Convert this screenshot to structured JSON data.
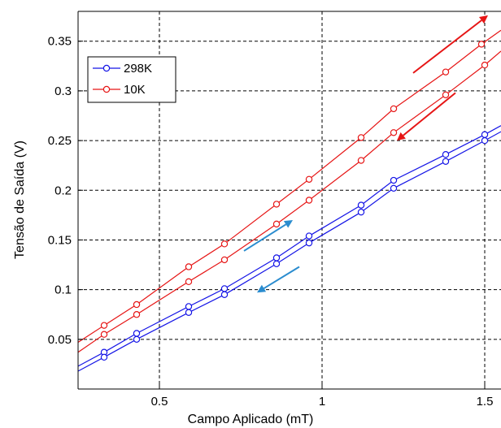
{
  "chart_data": {
    "type": "line",
    "title": "",
    "xlabel": "Campo Aplicado (mT)",
    "ylabel": "Tensão de Saída (V)",
    "xlim": [
      0.25,
      1.55
    ],
    "ylim": [
      0.0,
      0.38
    ],
    "grid": true,
    "grid_style": "dashed",
    "legend_position": "top-left",
    "x_ticks": [
      0.5,
      1,
      1.5
    ],
    "x_tick_labels": [
      "0.5",
      "1",
      "1.5"
    ],
    "y_ticks": [
      0.05,
      0.1,
      0.15,
      0.2,
      0.25,
      0.3,
      0.35
    ],
    "y_tick_labels": [
      "0.05",
      "0.1",
      "0.15",
      "0.2",
      "0.25",
      "0.3",
      "0.35"
    ],
    "series": [
      {
        "name": "298K",
        "color": "#1515e6",
        "branch": "up",
        "points": [
          [
            0.25,
            0.023
          ],
          [
            0.33,
            0.037
          ],
          [
            0.43,
            0.056
          ],
          [
            0.59,
            0.083
          ],
          [
            0.7,
            0.101
          ],
          [
            0.86,
            0.132
          ],
          [
            0.96,
            0.154
          ],
          [
            1.12,
            0.185
          ],
          [
            1.22,
            0.21
          ],
          [
            1.38,
            0.236
          ],
          [
            1.5,
            0.256
          ],
          [
            1.55,
            0.265
          ]
        ]
      },
      {
        "name": "",
        "color": "#1515e6",
        "branch": "down",
        "points": [
          [
            0.25,
            0.018
          ],
          [
            0.33,
            0.032
          ],
          [
            0.43,
            0.05
          ],
          [
            0.59,
            0.077
          ],
          [
            0.7,
            0.095
          ],
          [
            0.86,
            0.126
          ],
          [
            0.96,
            0.147
          ],
          [
            1.12,
            0.178
          ],
          [
            1.22,
            0.202
          ],
          [
            1.38,
            0.229
          ],
          [
            1.5,
            0.25
          ],
          [
            1.55,
            0.259
          ]
        ]
      },
      {
        "name": "10K",
        "color": "#e61515",
        "branch": "up",
        "points": [
          [
            0.25,
            0.047
          ],
          [
            0.33,
            0.064
          ],
          [
            0.43,
            0.085
          ],
          [
            0.59,
            0.123
          ],
          [
            0.7,
            0.146
          ],
          [
            0.86,
            0.186
          ],
          [
            0.96,
            0.211
          ],
          [
            1.12,
            0.253
          ],
          [
            1.22,
            0.282
          ],
          [
            1.38,
            0.319
          ],
          [
            1.49,
            0.347
          ],
          [
            1.55,
            0.361
          ]
        ]
      },
      {
        "name": "",
        "color": "#e61515",
        "branch": "down",
        "points": [
          [
            0.25,
            0.037
          ],
          [
            0.33,
            0.055
          ],
          [
            0.43,
            0.075
          ],
          [
            0.59,
            0.108
          ],
          [
            0.7,
            0.13
          ],
          [
            0.86,
            0.166
          ],
          [
            0.96,
            0.19
          ],
          [
            1.12,
            0.23
          ],
          [
            1.22,
            0.258
          ],
          [
            1.38,
            0.296
          ],
          [
            1.5,
            0.326
          ],
          [
            1.55,
            0.34
          ]
        ]
      }
    ],
    "arrows": [
      {
        "color": "#e61515",
        "direction": "up",
        "from": [
          1.28,
          0.318
        ],
        "to": [
          1.51,
          0.376
        ]
      },
      {
        "color": "#e61515",
        "direction": "down",
        "from": [
          1.41,
          0.298
        ],
        "to": [
          1.23,
          0.25
        ]
      },
      {
        "color": "#2a8ccf",
        "direction": "up",
        "from": [
          0.76,
          0.139
        ],
        "to": [
          0.91,
          0.17
        ]
      },
      {
        "color": "#2a8ccf",
        "direction": "down",
        "from": [
          0.93,
          0.123
        ],
        "to": [
          0.8,
          0.097
        ]
      }
    ]
  }
}
